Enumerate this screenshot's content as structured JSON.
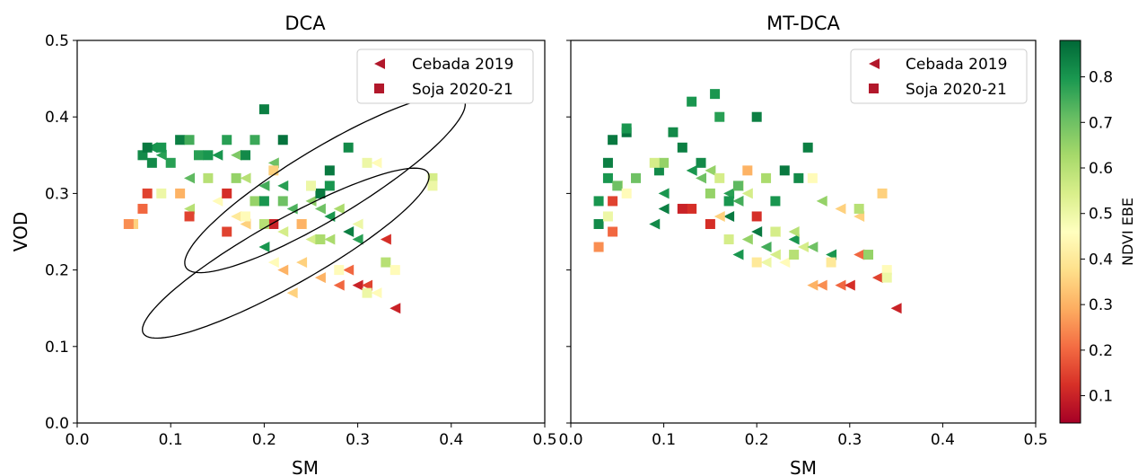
{
  "chart_data": [
    {
      "type": "scatter",
      "title": "DCA",
      "xlabel": "SM",
      "ylabel": "VOD",
      "xlim": [
        0.0,
        0.5
      ],
      "ylim": [
        0.0,
        0.5
      ],
      "xticks": [
        "0.0",
        "0.1",
        "0.2",
        "0.3",
        "0.4",
        "0.5"
      ],
      "yticks": [
        "0.0",
        "0.1",
        "0.2",
        "0.3",
        "0.4",
        "0.5"
      ],
      "grid": false,
      "legend_position": "top-right",
      "series": [
        {
          "name": "Cebada 2019",
          "marker": "triangle-left",
          "legend_color": "#b2182b",
          "points": [
            [
              0.08,
              0.36,
              0.8
            ],
            [
              0.09,
              0.35,
              0.78
            ],
            [
              0.12,
              0.32,
              0.72
            ],
            [
              0.15,
              0.35,
              0.8
            ],
            [
              0.17,
              0.35,
              0.68
            ],
            [
              0.18,
              0.32,
              0.6
            ],
            [
              0.2,
              0.31,
              0.75
            ],
            [
              0.21,
              0.34,
              0.7
            ],
            [
              0.22,
              0.31,
              0.78
            ],
            [
              0.23,
              0.28,
              0.74
            ],
            [
              0.25,
              0.29,
              0.66
            ],
            [
              0.26,
              0.28,
              0.7
            ],
            [
              0.27,
              0.27,
              0.8
            ],
            [
              0.28,
              0.28,
              0.62
            ],
            [
              0.29,
              0.25,
              0.84
            ],
            [
              0.3,
              0.24,
              0.78
            ],
            [
              0.27,
              0.24,
              0.62
            ],
            [
              0.25,
              0.24,
              0.55
            ],
            [
              0.22,
              0.25,
              0.55
            ],
            [
              0.2,
              0.23,
              0.8
            ],
            [
              0.21,
              0.21,
              0.45
            ],
            [
              0.22,
              0.2,
              0.3
            ],
            [
              0.24,
              0.21,
              0.35
            ],
            [
              0.23,
              0.17,
              0.35
            ],
            [
              0.26,
              0.19,
              0.3
            ],
            [
              0.28,
              0.18,
              0.2
            ],
            [
              0.29,
              0.2,
              0.2
            ],
            [
              0.3,
              0.18,
              0.1
            ],
            [
              0.31,
              0.18,
              0.15
            ],
            [
              0.33,
              0.24,
              0.12
            ],
            [
              0.34,
              0.15,
              0.1
            ],
            [
              0.32,
              0.17,
              0.45
            ],
            [
              0.12,
              0.28,
              0.6
            ],
            [
              0.15,
              0.29,
              0.45
            ],
            [
              0.17,
              0.27,
              0.4
            ],
            [
              0.19,
              0.29,
              0.55
            ],
            [
              0.18,
              0.26,
              0.35
            ],
            [
              0.24,
              0.26,
              0.45
            ],
            [
              0.3,
              0.26,
              0.5
            ],
            [
              0.32,
              0.34,
              0.45
            ]
          ]
        },
        {
          "name": "Soja 2020-21",
          "marker": "square",
          "legend_color": "#b2182b",
          "points": [
            [
              0.07,
              0.35,
              0.82
            ],
            [
              0.08,
              0.34,
              0.82
            ],
            [
              0.075,
              0.36,
              0.85
            ],
            [
              0.09,
              0.36,
              0.8
            ],
            [
              0.1,
              0.34,
              0.78
            ],
            [
              0.11,
              0.37,
              0.84
            ],
            [
              0.12,
              0.37,
              0.75
            ],
            [
              0.13,
              0.35,
              0.78
            ],
            [
              0.14,
              0.35,
              0.8
            ],
            [
              0.16,
              0.37,
              0.78
            ],
            [
              0.18,
              0.35,
              0.82
            ],
            [
              0.19,
              0.37,
              0.76
            ],
            [
              0.2,
              0.41,
              0.84
            ],
            [
              0.22,
              0.37,
              0.86
            ],
            [
              0.26,
              0.3,
              0.85
            ],
            [
              0.27,
              0.33,
              0.85
            ],
            [
              0.29,
              0.36,
              0.82
            ],
            [
              0.27,
              0.31,
              0.8
            ],
            [
              0.17,
              0.32,
              0.65
            ],
            [
              0.19,
              0.29,
              0.65
            ],
            [
              0.2,
              0.29,
              0.8
            ],
            [
              0.22,
              0.29,
              0.7
            ],
            [
              0.25,
              0.31,
              0.6
            ],
            [
              0.26,
              0.24,
              0.62
            ],
            [
              0.21,
              0.33,
              0.35
            ],
            [
              0.21,
              0.26,
              0.1
            ],
            [
              0.16,
              0.3,
              0.12
            ],
            [
              0.16,
              0.25,
              0.15
            ],
            [
              0.12,
              0.27,
              0.15
            ],
            [
              0.11,
              0.3,
              0.3
            ],
            [
              0.09,
              0.3,
              0.5
            ],
            [
              0.07,
              0.28,
              0.2
            ],
            [
              0.075,
              0.3,
              0.15
            ],
            [
              0.06,
              0.26,
              0.35
            ],
            [
              0.055,
              0.26,
              0.25
            ],
            [
              0.14,
              0.32,
              0.6
            ],
            [
              0.2,
              0.26,
              0.6
            ],
            [
              0.25,
              0.31,
              0.5
            ],
            [
              0.28,
              0.2,
              0.45
            ],
            [
              0.31,
              0.17,
              0.5
            ],
            [
              0.31,
              0.34,
              0.5
            ],
            [
              0.33,
              0.21,
              0.6
            ],
            [
              0.34,
              0.2,
              0.45
            ],
            [
              0.38,
              0.32,
              0.55
            ],
            [
              0.38,
              0.31,
              0.5
            ],
            [
              0.24,
              0.26,
              0.3
            ],
            [
              0.18,
              0.27,
              0.45
            ]
          ]
        }
      ],
      "ellipses": [
        {
          "cx": 0.265,
          "cy": 0.313,
          "rx": 0.185,
          "ry": 0.043,
          "angle_deg": -37
        },
        {
          "cx": 0.223,
          "cy": 0.222,
          "rx": 0.185,
          "ry": 0.04,
          "angle_deg": -35
        }
      ]
    },
    {
      "type": "scatter",
      "title": "MT-DCA",
      "xlabel": "SM",
      "ylabel": "",
      "xlim": [
        0.0,
        0.5
      ],
      "ylim": [
        0.0,
        0.5
      ],
      "xticks": [
        "0.0",
        "0.1",
        "0.2",
        "0.3",
        "0.4",
        "0.5"
      ],
      "yticks": [],
      "grid": false,
      "legend_position": "top-right",
      "series": [
        {
          "name": "Cebada 2019",
          "marker": "triangle-left",
          "legend_color": "#b2182b",
          "points": [
            [
              0.05,
              0.31,
              0.6
            ],
            [
              0.09,
              0.26,
              0.82
            ],
            [
              0.1,
              0.3,
              0.8
            ],
            [
              0.1,
              0.28,
              0.84
            ],
            [
              0.13,
              0.33,
              0.8
            ],
            [
              0.14,
              0.32,
              0.7
            ],
            [
              0.15,
              0.33,
              0.65
            ],
            [
              0.17,
              0.3,
              0.78
            ],
            [
              0.18,
              0.31,
              0.62
            ],
            [
              0.18,
              0.29,
              0.75
            ],
            [
              0.17,
              0.27,
              0.85
            ],
            [
              0.16,
              0.27,
              0.35
            ],
            [
              0.19,
              0.3,
              0.55
            ],
            [
              0.2,
              0.25,
              0.85
            ],
            [
              0.21,
              0.23,
              0.75
            ],
            [
              0.22,
              0.22,
              0.55
            ],
            [
              0.23,
              0.21,
              0.45
            ],
            [
              0.22,
              0.25,
              0.5
            ],
            [
              0.24,
              0.24,
              0.8
            ],
            [
              0.25,
              0.23,
              0.55
            ],
            [
              0.26,
              0.23,
              0.7
            ],
            [
              0.26,
              0.18,
              0.3
            ],
            [
              0.27,
              0.18,
              0.25
            ],
            [
              0.28,
              0.22,
              0.8
            ],
            [
              0.27,
              0.29,
              0.65
            ],
            [
              0.29,
              0.18,
              0.2
            ],
            [
              0.3,
              0.18,
              0.12
            ],
            [
              0.31,
              0.22,
              0.2
            ],
            [
              0.31,
              0.27,
              0.35
            ],
            [
              0.29,
              0.28,
              0.35
            ],
            [
              0.33,
              0.19,
              0.15
            ],
            [
              0.35,
              0.15,
              0.1
            ],
            [
              0.18,
              0.22,
              0.8
            ],
            [
              0.19,
              0.24,
              0.65
            ],
            [
              0.21,
              0.21,
              0.5
            ],
            [
              0.24,
              0.25,
              0.6
            ]
          ]
        },
        {
          "name": "Soja 2020-21",
          "marker": "square",
          "legend_color": "#b2182b",
          "points": [
            [
              0.03,
              0.29,
              0.8
            ],
            [
              0.03,
              0.26,
              0.82
            ],
            [
              0.04,
              0.34,
              0.84
            ],
            [
              0.04,
              0.32,
              0.8
            ],
            [
              0.045,
              0.37,
              0.85
            ],
            [
              0.05,
              0.31,
              0.7
            ],
            [
              0.06,
              0.38,
              0.86
            ],
            [
              0.06,
              0.385,
              0.8
            ],
            [
              0.07,
              0.32,
              0.7
            ],
            [
              0.095,
              0.33,
              0.82
            ],
            [
              0.1,
              0.34,
              0.65
            ],
            [
              0.11,
              0.38,
              0.82
            ],
            [
              0.12,
              0.36,
              0.84
            ],
            [
              0.13,
              0.42,
              0.8
            ],
            [
              0.14,
              0.34,
              0.82
            ],
            [
              0.155,
              0.43,
              0.8
            ],
            [
              0.16,
              0.4,
              0.78
            ],
            [
              0.2,
              0.4,
              0.84
            ],
            [
              0.18,
              0.31,
              0.72
            ],
            [
              0.21,
              0.32,
              0.62
            ],
            [
              0.23,
              0.33,
              0.85
            ],
            [
              0.245,
              0.32,
              0.82
            ],
            [
              0.255,
              0.36,
              0.84
            ],
            [
              0.13,
              0.28,
              0.12
            ],
            [
              0.12,
              0.28,
              0.1
            ],
            [
              0.15,
              0.26,
              0.12
            ],
            [
              0.2,
              0.27,
              0.12
            ],
            [
              0.19,
              0.33,
              0.3
            ],
            [
              0.03,
              0.23,
              0.25
            ],
            [
              0.045,
              0.25,
              0.2
            ],
            [
              0.045,
              0.29,
              0.15
            ],
            [
              0.04,
              0.27,
              0.5
            ],
            [
              0.06,
              0.3,
              0.45
            ],
            [
              0.09,
              0.34,
              0.55
            ],
            [
              0.15,
              0.3,
              0.65
            ],
            [
              0.17,
              0.24,
              0.55
            ],
            [
              0.17,
              0.29,
              0.8
            ],
            [
              0.2,
              0.21,
              0.4
            ],
            [
              0.22,
              0.25,
              0.55
            ],
            [
              0.24,
              0.22,
              0.6
            ],
            [
              0.26,
              0.32,
              0.45
            ],
            [
              0.28,
              0.21,
              0.4
            ],
            [
              0.31,
              0.28,
              0.6
            ],
            [
              0.32,
              0.22,
              0.65
            ],
            [
              0.335,
              0.3,
              0.35
            ],
            [
              0.34,
              0.2,
              0.45
            ],
            [
              0.34,
              0.19,
              0.5
            ],
            [
              0.22,
              0.29,
              0.8
            ],
            [
              0.16,
              0.32,
              0.55
            ]
          ]
        }
      ],
      "ellipses": []
    }
  ],
  "colorbar": {
    "label": "NDVI EBE",
    "range": [
      0.04,
      0.88
    ],
    "ticks": [
      "0.1",
      "0.2",
      "0.3",
      "0.4",
      "0.5",
      "0.6",
      "0.7",
      "0.8"
    ],
    "colormap": [
      "#a50026",
      "#d73027",
      "#f46d43",
      "#fdae61",
      "#fee08b",
      "#ffffbf",
      "#d9ef8b",
      "#a6d96a",
      "#66bd63",
      "#1a9850",
      "#006837"
    ]
  }
}
